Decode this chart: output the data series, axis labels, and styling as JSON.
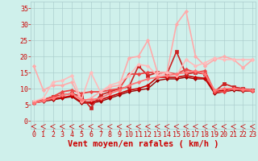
{
  "background_color": "#cff0eb",
  "grid_color": "#aacccc",
  "xlabel": "Vent moyen/en rafales ( km/h )",
  "xlabel_color": "#cc0000",
  "xlabel_fontsize": 7.5,
  "ylabel_ticks": [
    0,
    5,
    10,
    15,
    20,
    25,
    30,
    35
  ],
  "xticks": [
    0,
    1,
    2,
    3,
    4,
    5,
    6,
    7,
    8,
    9,
    10,
    11,
    12,
    13,
    14,
    15,
    16,
    17,
    18,
    19,
    20,
    21,
    22,
    23
  ],
  "xlim": [
    -0.3,
    23.3
  ],
  "ylim": [
    -2.5,
    37
  ],
  "lines": [
    {
      "x": [
        0,
        1,
        2,
        3,
        4,
        5,
        6,
        7,
        8,
        9,
        10,
        11,
        12,
        13,
        14,
        15,
        16,
        17,
        18,
        19,
        20,
        21,
        22,
        23
      ],
      "y": [
        5.5,
        6.0,
        6.5,
        7.0,
        7.5,
        5.5,
        5.5,
        6.0,
        7.0,
        8.0,
        9.0,
        9.5,
        10.0,
        12.5,
        13.0,
        13.0,
        13.5,
        13.0,
        13.0,
        8.5,
        9.0,
        9.5,
        9.2,
        9.2
      ],
      "color": "#990000",
      "lw": 1.0,
      "marker": "D",
      "ms": 2.0
    },
    {
      "x": [
        0,
        1,
        2,
        3,
        4,
        5,
        6,
        7,
        8,
        9,
        10,
        11,
        12,
        13,
        14,
        15,
        16,
        17,
        18,
        19,
        20,
        21,
        22,
        23
      ],
      "y": [
        5.5,
        6.2,
        6.8,
        7.2,
        7.8,
        5.8,
        5.8,
        6.5,
        7.5,
        8.5,
        9.5,
        10.0,
        11.0,
        13.5,
        13.5,
        13.5,
        14.0,
        13.5,
        13.2,
        9.0,
        9.5,
        10.0,
        9.8,
        9.5
      ],
      "color": "#cc0000",
      "lw": 1.2,
      "marker": "D",
      "ms": 2.2
    },
    {
      "x": [
        0,
        1,
        2,
        3,
        4,
        5,
        6,
        7,
        8,
        9,
        10,
        11,
        12,
        13,
        14,
        15,
        16,
        17,
        18,
        19,
        20,
        21,
        22,
        23
      ],
      "y": [
        5.8,
        6.5,
        7.5,
        8.0,
        8.5,
        7.5,
        4.0,
        8.0,
        9.0,
        10.0,
        10.5,
        17.0,
        14.0,
        15.0,
        14.5,
        21.5,
        14.5,
        15.0,
        14.5,
        9.0,
        11.5,
        10.5,
        10.0,
        9.5
      ],
      "color": "#cc2222",
      "lw": 1.2,
      "marker": "s",
      "ms": 3.0
    },
    {
      "x": [
        0,
        1,
        2,
        3,
        4,
        5,
        6,
        7,
        8,
        9,
        10,
        11,
        12,
        13,
        14,
        15,
        16,
        17,
        18,
        19,
        20,
        21,
        22,
        23
      ],
      "y": [
        5.5,
        6.5,
        7.5,
        9.0,
        9.5,
        8.5,
        9.0,
        9.0,
        9.5,
        10.0,
        14.5,
        14.5,
        15.0,
        15.0,
        15.0,
        14.5,
        16.0,
        15.0,
        15.5,
        9.0,
        9.0,
        10.0,
        9.5,
        9.2
      ],
      "color": "#ee4444",
      "lw": 1.3,
      "marker": "D",
      "ms": 2.2
    },
    {
      "x": [
        0,
        1,
        2,
        3,
        4,
        5,
        6,
        7,
        8,
        9,
        10,
        11,
        12,
        13,
        14,
        15,
        16,
        17,
        18,
        19,
        20,
        21,
        22,
        23
      ],
      "y": [
        17.0,
        9.5,
        11.0,
        11.0,
        12.0,
        6.0,
        7.0,
        9.0,
        10.5,
        11.0,
        19.5,
        20.0,
        25.0,
        15.0,
        15.0,
        30.0,
        34.0,
        20.0,
        17.0,
        19.0,
        20.0,
        19.0,
        16.5,
        19.0
      ],
      "color": "#ffaaaa",
      "lw": 1.2,
      "marker": "D",
      "ms": 2.2
    },
    {
      "x": [
        0,
        1,
        2,
        3,
        4,
        5,
        6,
        7,
        8,
        9,
        10,
        11,
        12,
        13,
        14,
        15,
        16,
        17,
        18,
        19,
        20,
        21,
        22,
        23
      ],
      "y": [
        6.0,
        7.0,
        12.0,
        12.5,
        14.0,
        6.5,
        15.0,
        9.0,
        11.0,
        12.0,
        14.0,
        17.5,
        17.0,
        14.0,
        15.0,
        14.0,
        19.0,
        17.0,
        18.0,
        19.5,
        19.0,
        19.0,
        19.0,
        19.0
      ],
      "color": "#ffbbbb",
      "lw": 1.2,
      "marker": "D",
      "ms": 2.2
    },
    {
      "x": [
        0,
        1,
        2,
        3,
        4,
        5,
        6,
        7,
        8,
        9,
        10,
        11,
        12,
        13,
        14,
        15,
        16,
        17,
        18,
        19,
        20,
        21,
        22,
        23
      ],
      "y": [
        5.5,
        6.2,
        7.0,
        8.0,
        8.5,
        6.5,
        6.5,
        7.0,
        8.5,
        9.5,
        11.0,
        12.0,
        13.0,
        13.5,
        14.0,
        14.5,
        15.0,
        15.5,
        14.5,
        9.5,
        10.0,
        10.0,
        9.8,
        9.5
      ],
      "color": "#ff7777",
      "lw": 1.3,
      "marker": "D",
      "ms": 2.2
    }
  ],
  "arrow_color": "#cc0000",
  "tick_color": "#cc0000",
  "tick_fontsize": 6
}
